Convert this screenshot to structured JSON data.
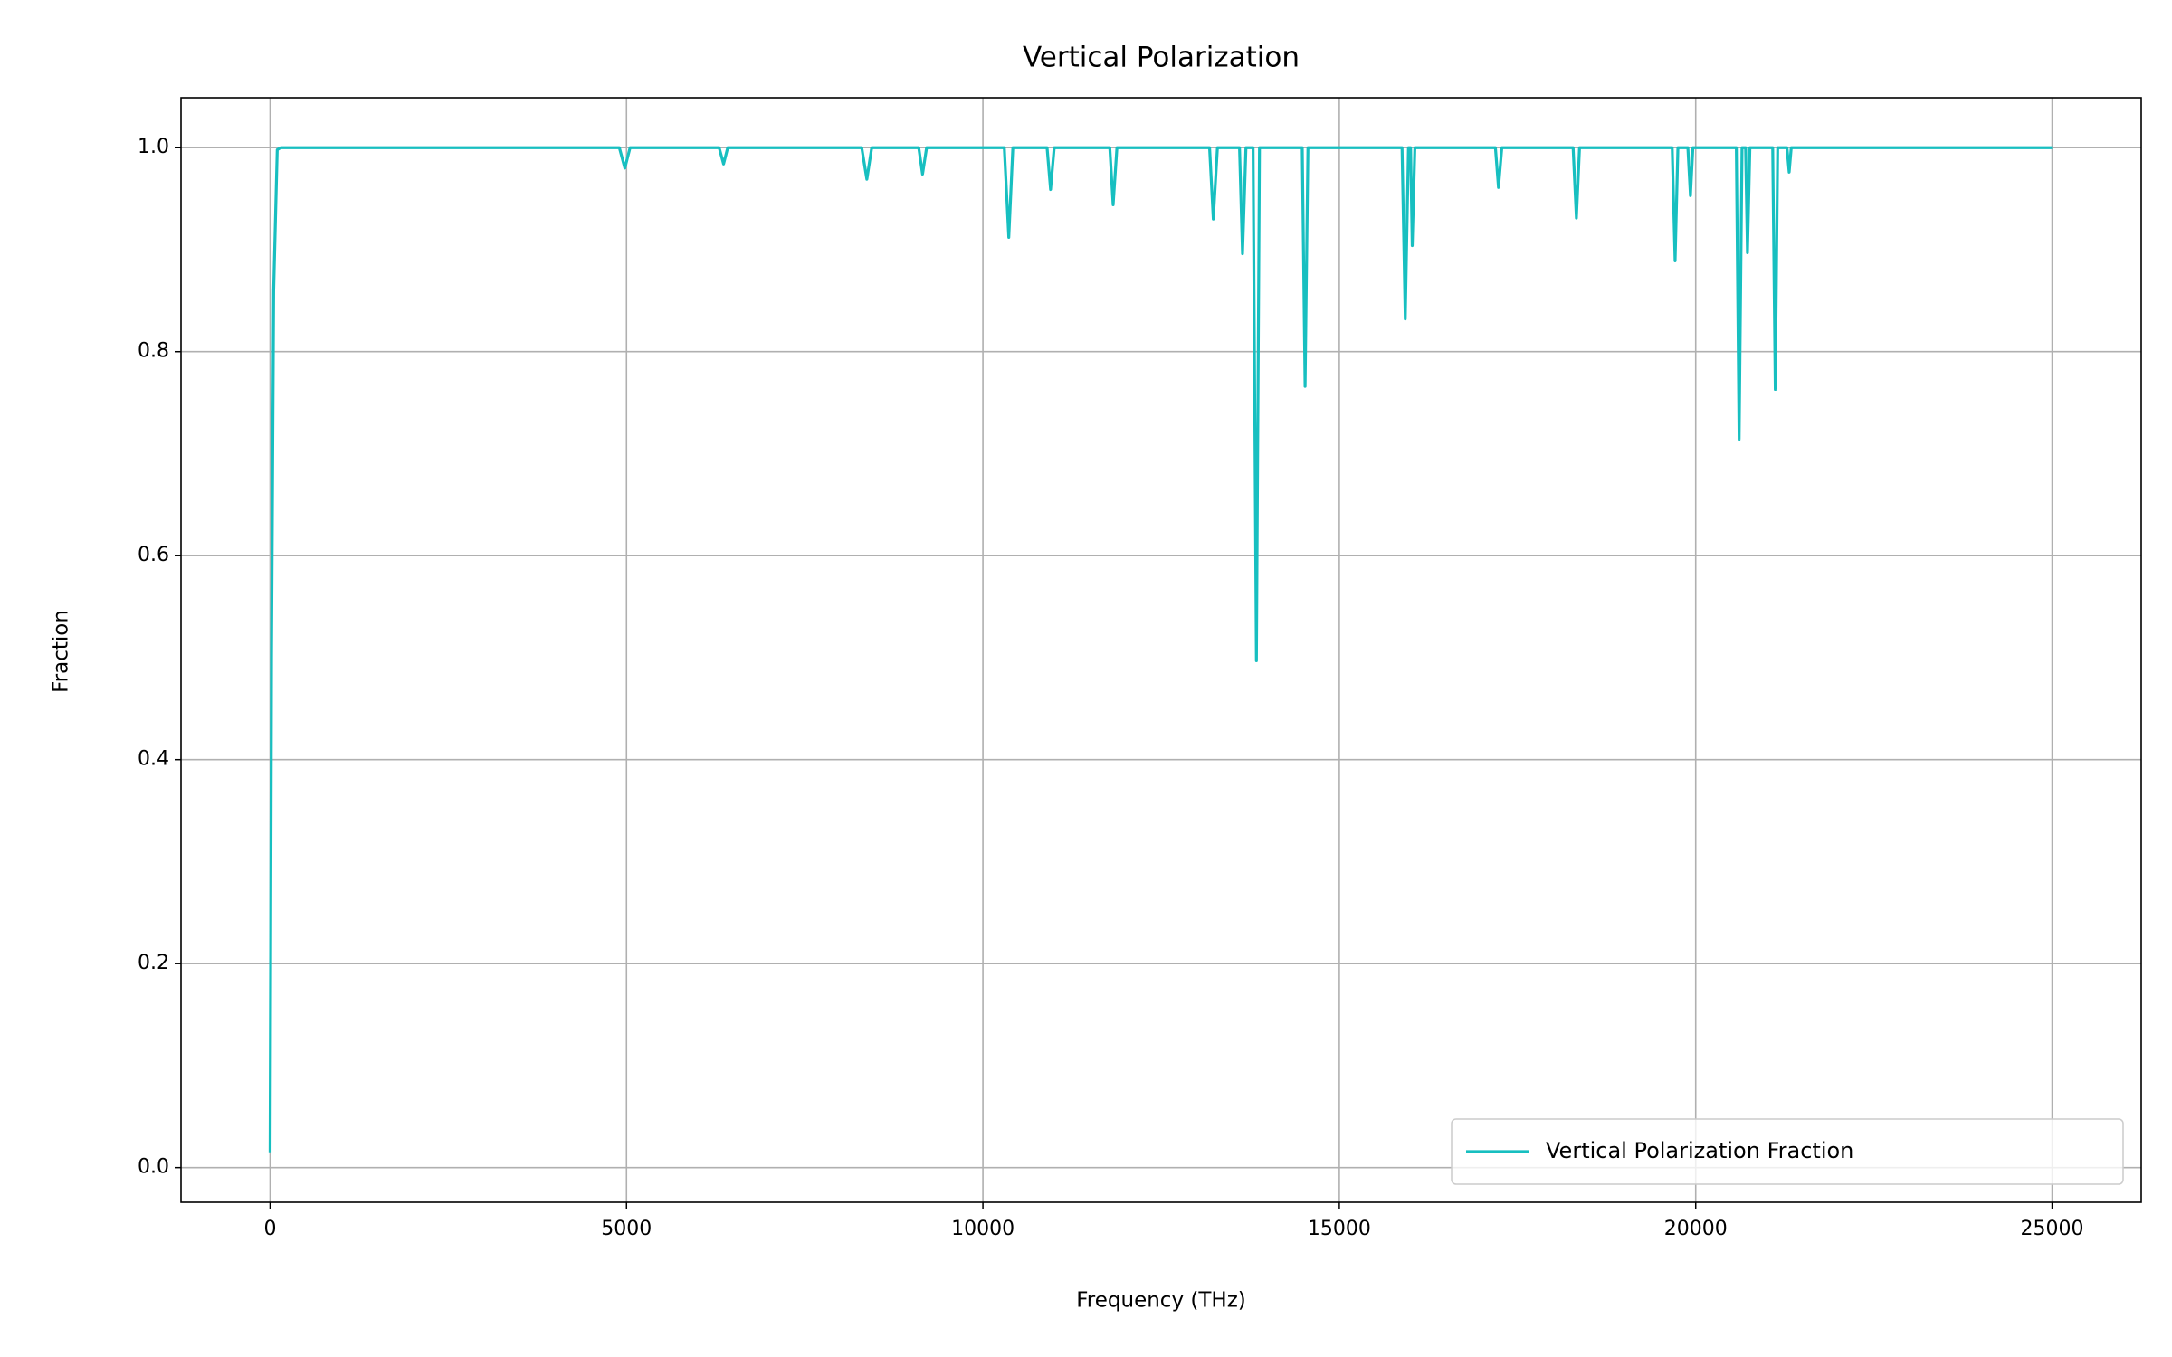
{
  "chart_data": {
    "type": "line",
    "title": "Vertical Polarization",
    "x_label": "Frequency (THz)",
    "y_label": "Fraction",
    "x": [
      0,
      20,
      50,
      100,
      150,
      4900,
      4977,
      5050,
      6300,
      6362,
      6420,
      8300,
      8372,
      8440,
      9100,
      9153,
      9210,
      10300,
      10363,
      10420,
      10900,
      10949,
      11000,
      11780,
      11827,
      11880,
      13180,
      13232,
      13290,
      13600,
      13642,
      13690,
      13790,
      13837,
      13880,
      14480,
      14520,
      14560,
      15880,
      15925,
      15970,
      16000,
      16023,
      16060,
      17190,
      17233,
      17280,
      18280,
      18326,
      18370,
      19670,
      19711,
      19750,
      19890,
      19926,
      19960,
      20570,
      20609,
      20650,
      20700,
      20726,
      20760,
      21080,
      21116,
      21150,
      21280,
      21311,
      21340,
      25000
    ],
    "series": [
      {
        "name": "Vertical Polarization Fraction",
        "color": "#17bfc0",
        "values": [
          0.015,
          0.5,
          0.86,
          0.998,
          1.0,
          1.0,
          0.98,
          1.0,
          1.0,
          0.984,
          1.0,
          1.0,
          0.969,
          1.0,
          1.0,
          0.974,
          1.0,
          1.0,
          0.912,
          1.0,
          1.0,
          0.959,
          1.0,
          1.0,
          0.944,
          1.0,
          1.0,
          0.93,
          1.0,
          1.0,
          0.896,
          1.0,
          1.0,
          0.497,
          1.0,
          1.0,
          0.766,
          1.0,
          1.0,
          0.832,
          1.0,
          1.0,
          0.904,
          1.0,
          1.0,
          0.961,
          1.0,
          1.0,
          0.931,
          1.0,
          1.0,
          0.889,
          1.0,
          1.0,
          0.953,
          1.0,
          1.0,
          0.714,
          1.0,
          1.0,
          0.897,
          1.0,
          1.0,
          0.763,
          1.0,
          1.0,
          0.976,
          1.0,
          1.0
        ]
      }
    ],
    "xlim": [
      -1250,
      26250
    ],
    "xticks": [
      0,
      5000,
      10000,
      15000,
      20000,
      25000
    ],
    "ylim": [
      -0.034,
      1.049
    ],
    "yticks": [
      {
        "value": 0,
        "label": "0.0"
      },
      0.2,
      0.4,
      0.6,
      0.8,
      {
        "value": 1,
        "label": "1.0"
      }
    ],
    "grid": true,
    "legend": "lower right"
  }
}
